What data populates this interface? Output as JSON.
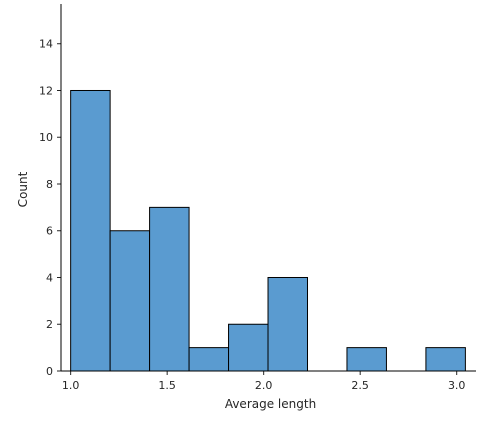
{
  "chart_data": {
    "type": "bar",
    "title": "",
    "xlabel": "Average length",
    "ylabel": "Count",
    "xlim": [
      0.95,
      3.1
    ],
    "ylim": [
      0,
      15.7
    ],
    "xticks": [
      1.0,
      1.5,
      2.0,
      2.5,
      3.0
    ],
    "xtick_labels": [
      "1.0",
      "1.5",
      "2.0",
      "2.5",
      "3.0"
    ],
    "yticks": [
      0,
      2,
      4,
      6,
      8,
      10,
      12,
      14
    ],
    "ytick_labels": [
      "0",
      "2",
      "4",
      "6",
      "8",
      "10",
      "12",
      "14"
    ],
    "bin_edges": [
      1.0,
      1.2045,
      1.409,
      1.6135,
      1.818,
      2.0225,
      2.227,
      2.4315,
      2.636,
      2.8405,
      3.045
    ],
    "counts": [
      12,
      6,
      7,
      1,
      2,
      4,
      0,
      1,
      0,
      1
    ],
    "bar_color": "#5a9bd0",
    "edge_color": "#000000",
    "grid": false,
    "spines": [
      "left",
      "bottom"
    ]
  }
}
